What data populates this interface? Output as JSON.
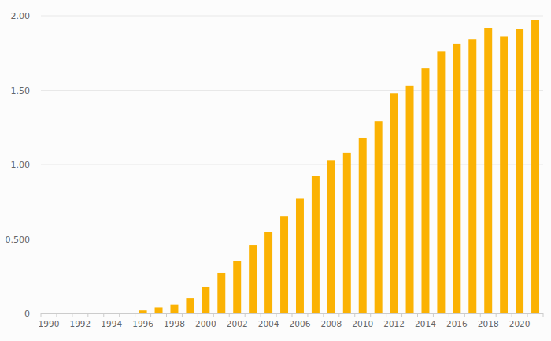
{
  "chart_data": {
    "type": "bar",
    "categories": [
      "1990",
      null,
      "1992",
      null,
      "1994",
      null,
      "1996",
      null,
      "1998",
      null,
      "2000",
      null,
      "2002",
      null,
      "2004",
      null,
      "2006",
      null,
      "2008",
      null,
      "2010",
      null,
      "2012",
      null,
      "2014",
      null,
      "2016",
      null,
      "2018",
      null,
      "2020",
      null
    ],
    "values": [
      0,
      0,
      0,
      0,
      0,
      0.005,
      0.02,
      0.04,
      0.06,
      0.1,
      0.18,
      0.27,
      0.35,
      0.46,
      0.545,
      0.655,
      0.77,
      0.925,
      1.03,
      1.08,
      1.18,
      1.29,
      1.48,
      1.53,
      1.65,
      1.76,
      1.81,
      1.84,
      1.92,
      1.86,
      1.91,
      1.97
    ],
    "color": "#fbb203",
    "ylim": [
      0,
      2.0
    ],
    "yticks": [
      0,
      {
        "value": 0.5,
        "label": "0.500"
      },
      {
        "value": 1.0,
        "label": "1.00"
      },
      {
        "value": 1.5,
        "label": "1.50"
      },
      {
        "value": 2.0,
        "label": "2.00"
      }
    ],
    "grid": true
  }
}
